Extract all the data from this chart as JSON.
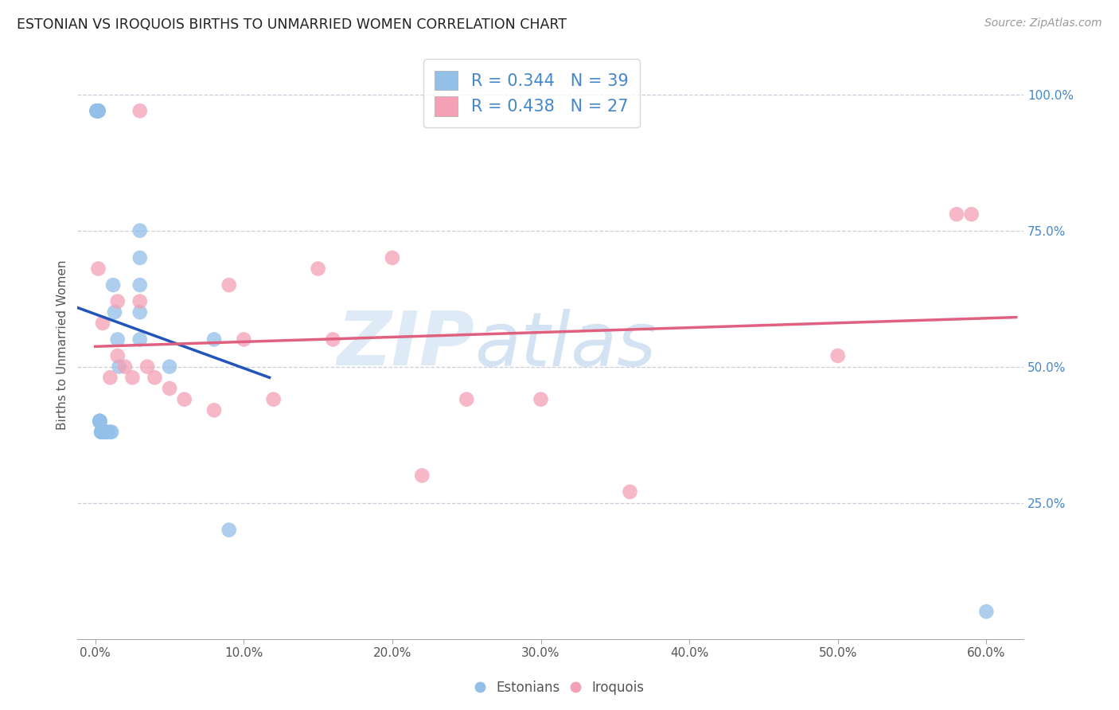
{
  "title": "ESTONIAN VS IROQUOIS BIRTHS TO UNMARRIED WOMEN CORRELATION CHART",
  "source": "Source: ZipAtlas.com",
  "ylabel": "Births to Unmarried Women",
  "x_ticks": [
    0.0,
    0.1,
    0.2,
    0.3,
    0.4,
    0.5,
    0.6
  ],
  "x_tick_labels": [
    "0.0%",
    "10.0%",
    "20.0%",
    "30.0%",
    "40.0%",
    "50.0%",
    "60.0%"
  ],
  "y_ticks": [
    0.25,
    0.5,
    0.75,
    1.0
  ],
  "y_tick_labels": [
    "25.0%",
    "50.0%",
    "75.0%",
    "100.0%"
  ],
  "estonian_color": "#92C0E8",
  "iroquois_color": "#F4A0B5",
  "estonian_line_color": "#2255BB",
  "iroquois_line_color": "#E06080",
  "background_color": "#ffffff",
  "grid_color": "#c8c8d8",
  "watermark_zip": "ZIP",
  "watermark_atlas": "atlas",
  "estonian_x": [
    0.001,
    0.001,
    0.001,
    0.001,
    0.001,
    0.002,
    0.002,
    0.002,
    0.002,
    0.003,
    0.003,
    0.003,
    0.003,
    0.003,
    0.004,
    0.004,
    0.004,
    0.005,
    0.005,
    0.006,
    0.006,
    0.007,
    0.007,
    0.008,
    0.01,
    0.011,
    0.012,
    0.013,
    0.015,
    0.016,
    0.03,
    0.03,
    0.03,
    0.03,
    0.03,
    0.05,
    0.08,
    0.09,
    0.6
  ],
  "estonian_y": [
    0.97,
    0.97,
    0.97,
    0.97,
    0.97,
    0.97,
    0.97,
    0.97,
    0.97,
    0.4,
    0.4,
    0.4,
    0.4,
    0.4,
    0.38,
    0.38,
    0.38,
    0.38,
    0.38,
    0.38,
    0.38,
    0.38,
    0.38,
    0.38,
    0.38,
    0.38,
    0.65,
    0.6,
    0.55,
    0.5,
    0.75,
    0.7,
    0.65,
    0.6,
    0.55,
    0.5,
    0.55,
    0.2,
    0.05
  ],
  "iroquois_x": [
    0.03,
    0.002,
    0.005,
    0.01,
    0.015,
    0.015,
    0.02,
    0.025,
    0.03,
    0.035,
    0.04,
    0.05,
    0.06,
    0.08,
    0.09,
    0.1,
    0.12,
    0.15,
    0.16,
    0.2,
    0.22,
    0.25,
    0.3,
    0.36,
    0.5,
    0.58,
    0.59
  ],
  "iroquois_y": [
    0.97,
    0.68,
    0.58,
    0.48,
    0.62,
    0.52,
    0.5,
    0.48,
    0.62,
    0.5,
    0.48,
    0.46,
    0.44,
    0.42,
    0.65,
    0.55,
    0.44,
    0.68,
    0.55,
    0.7,
    0.3,
    0.44,
    0.44,
    0.27,
    0.52,
    0.78,
    0.78
  ],
  "xlim": [
    -0.012,
    0.625
  ],
  "ylim": [
    0.0,
    1.08
  ]
}
